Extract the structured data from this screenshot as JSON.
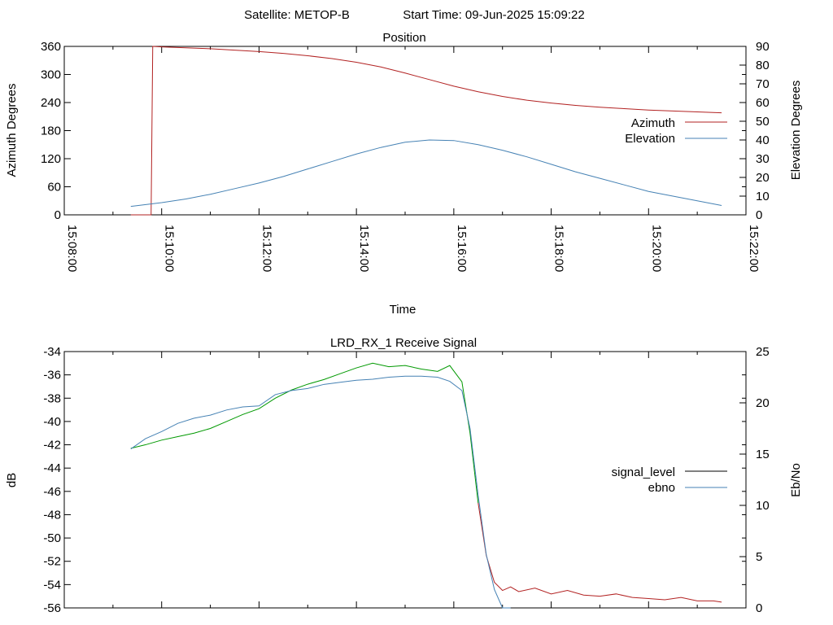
{
  "header": {
    "satellite_label": "Satellite: METOP-B",
    "start_label": "Start Time: 09-Jun-2025 15:09:22"
  },
  "chart_data": [
    {
      "type": "line",
      "title": "Position",
      "xlabel": "Time",
      "ylabel": "Azimuth Degrees",
      "y2label": "Elevation Degrees",
      "xlim": [
        "15:08:00",
        "15:22:00"
      ],
      "xticks": [
        "15:08:00",
        "15:10:00",
        "15:12:00",
        "15:14:00",
        "15:16:00",
        "15:18:00",
        "15:20:00",
        "15:22:00"
      ],
      "ylim": [
        0,
        360
      ],
      "yticks": [
        0,
        60,
        120,
        180,
        240,
        300,
        360
      ],
      "y2lim": [
        0,
        90
      ],
      "y2ticks": [
        0,
        10,
        20,
        30,
        40,
        50,
        60,
        70,
        80,
        90
      ],
      "grid": false,
      "legend_position": "right",
      "colors": {
        "azimuth": "#b22222",
        "elevation": "#4682b4",
        "axis": "#000000"
      },
      "series": [
        {
          "name": "Azimuth",
          "axis": "y",
          "x": [
            "15:09:22",
            "15:09:47",
            "15:09:48",
            "15:09:49",
            "15:10:00",
            "15:10:30",
            "15:11:00",
            "15:11:30",
            "15:12:00",
            "15:12:30",
            "15:13:00",
            "15:13:30",
            "15:14:00",
            "15:14:30",
            "15:15:00",
            "15:15:30",
            "15:16:00",
            "15:16:30",
            "15:17:00",
            "15:17:30",
            "15:18:00",
            "15:18:30",
            "15:19:00",
            "15:19:30",
            "15:20:00",
            "15:20:30",
            "15:21:00",
            "15:21:30"
          ],
          "values": [
            0,
            0,
            180,
            360,
            359,
            357,
            355,
            352,
            349,
            345,
            340,
            334,
            326,
            316,
            303,
            289,
            275,
            263,
            253,
            245,
            239,
            234,
            230,
            227,
            224,
            222,
            220,
            218
          ]
        },
        {
          "name": "Elevation",
          "axis": "y2",
          "x": [
            "15:09:22",
            "15:10:00",
            "15:10:30",
            "15:11:00",
            "15:11:30",
            "15:12:00",
            "15:12:30",
            "15:13:00",
            "15:13:30",
            "15:14:00",
            "15:14:30",
            "15:15:00",
            "15:15:30",
            "15:16:00",
            "15:16:30",
            "15:17:00",
            "15:17:30",
            "15:18:00",
            "15:18:30",
            "15:19:00",
            "15:19:30",
            "15:20:00",
            "15:20:30",
            "15:21:00",
            "15:21:30"
          ],
          "values": [
            4.5,
            6.5,
            8.5,
            11,
            14,
            17,
            20.5,
            24.5,
            28.5,
            32.5,
            36,
            38.8,
            40,
            39.7,
            37.5,
            34.5,
            31,
            27,
            23,
            19.5,
            16,
            12.5,
            10,
            7.5,
            5
          ]
        }
      ]
    },
    {
      "type": "line",
      "title": "LRD_RX_1 Receive Signal",
      "xlabel": "",
      "ylabel": "dB",
      "y2label": "Eb/No",
      "xlim": [
        "15:08:00",
        "15:22:00"
      ],
      "ylim": [
        -56,
        -34
      ],
      "yticks": [
        -56,
        -54,
        -52,
        -50,
        -48,
        -46,
        -44,
        -42,
        -40,
        -38,
        -36,
        -34
      ],
      "y2lim": [
        0,
        25
      ],
      "y2ticks": [
        0,
        5,
        10,
        15,
        20,
        25
      ],
      "grid": false,
      "legend_position": "right",
      "colors": {
        "signal_level": "#009900",
        "signal_level_low": "#b22222",
        "ebno": "#4682b4",
        "legend_signal_level": "#000000",
        "axis": "#000000"
      },
      "series": [
        {
          "name": "signal_level",
          "axis": "y",
          "x": [
            "15:09:22",
            "15:09:40",
            "15:10:00",
            "15:10:20",
            "15:10:40",
            "15:11:00",
            "15:11:20",
            "15:11:40",
            "15:12:00",
            "15:12:20",
            "15:12:40",
            "15:13:00",
            "15:13:20",
            "15:13:40",
            "15:14:00",
            "15:14:20",
            "15:14:40",
            "15:15:00",
            "15:15:20",
            "15:15:40",
            "15:15:55",
            "15:16:10",
            "15:16:20",
            "15:16:30",
            "15:16:40",
            "15:16:50",
            "15:17:00",
            "15:17:10",
            "15:17:20",
            "15:17:40",
            "15:18:00",
            "15:18:20",
            "15:18:40",
            "15:19:00",
            "15:19:20",
            "15:19:40",
            "15:20:00",
            "15:20:20",
            "15:20:40",
            "15:21:00",
            "15:21:20",
            "15:21:30"
          ],
          "values": [
            -42.3,
            -42.0,
            -41.6,
            -41.3,
            -41.0,
            -40.6,
            -40.0,
            -39.4,
            -38.9,
            -38.0,
            -37.3,
            -36.8,
            -36.4,
            -35.9,
            -35.4,
            -35.0,
            -35.3,
            -35.2,
            -35.5,
            -35.7,
            -35.2,
            -36.6,
            -41.0,
            -47.0,
            -51.5,
            -53.8,
            -54.5,
            -54.2,
            -54.6,
            -54.3,
            -54.8,
            -54.5,
            -54.9,
            -55.0,
            -54.8,
            -55.1,
            -55.2,
            -55.3,
            -55.1,
            -55.4,
            -55.4,
            -55.5
          ]
        },
        {
          "name": "ebno",
          "axis": "y2",
          "x": [
            "15:09:22",
            "15:09:40",
            "15:10:00",
            "15:10:20",
            "15:10:40",
            "15:11:00",
            "15:11:20",
            "15:11:40",
            "15:12:00",
            "15:12:20",
            "15:12:40",
            "15:13:00",
            "15:13:20",
            "15:13:40",
            "15:14:00",
            "15:14:20",
            "15:14:40",
            "15:15:00",
            "15:15:20",
            "15:15:40",
            "15:15:55",
            "15:16:10",
            "15:16:20",
            "15:16:30",
            "15:16:40",
            "15:16:50",
            "15:17:00",
            "15:17:10"
          ],
          "values": [
            15.5,
            16.5,
            17.2,
            18.0,
            18.5,
            18.8,
            19.3,
            19.6,
            19.7,
            20.8,
            21.2,
            21.4,
            21.8,
            22.0,
            22.2,
            22.3,
            22.5,
            22.6,
            22.6,
            22.5,
            22.1,
            21.2,
            17.5,
            11.0,
            5.2,
            1.8,
            0.0,
            0.0
          ]
        }
      ]
    }
  ]
}
